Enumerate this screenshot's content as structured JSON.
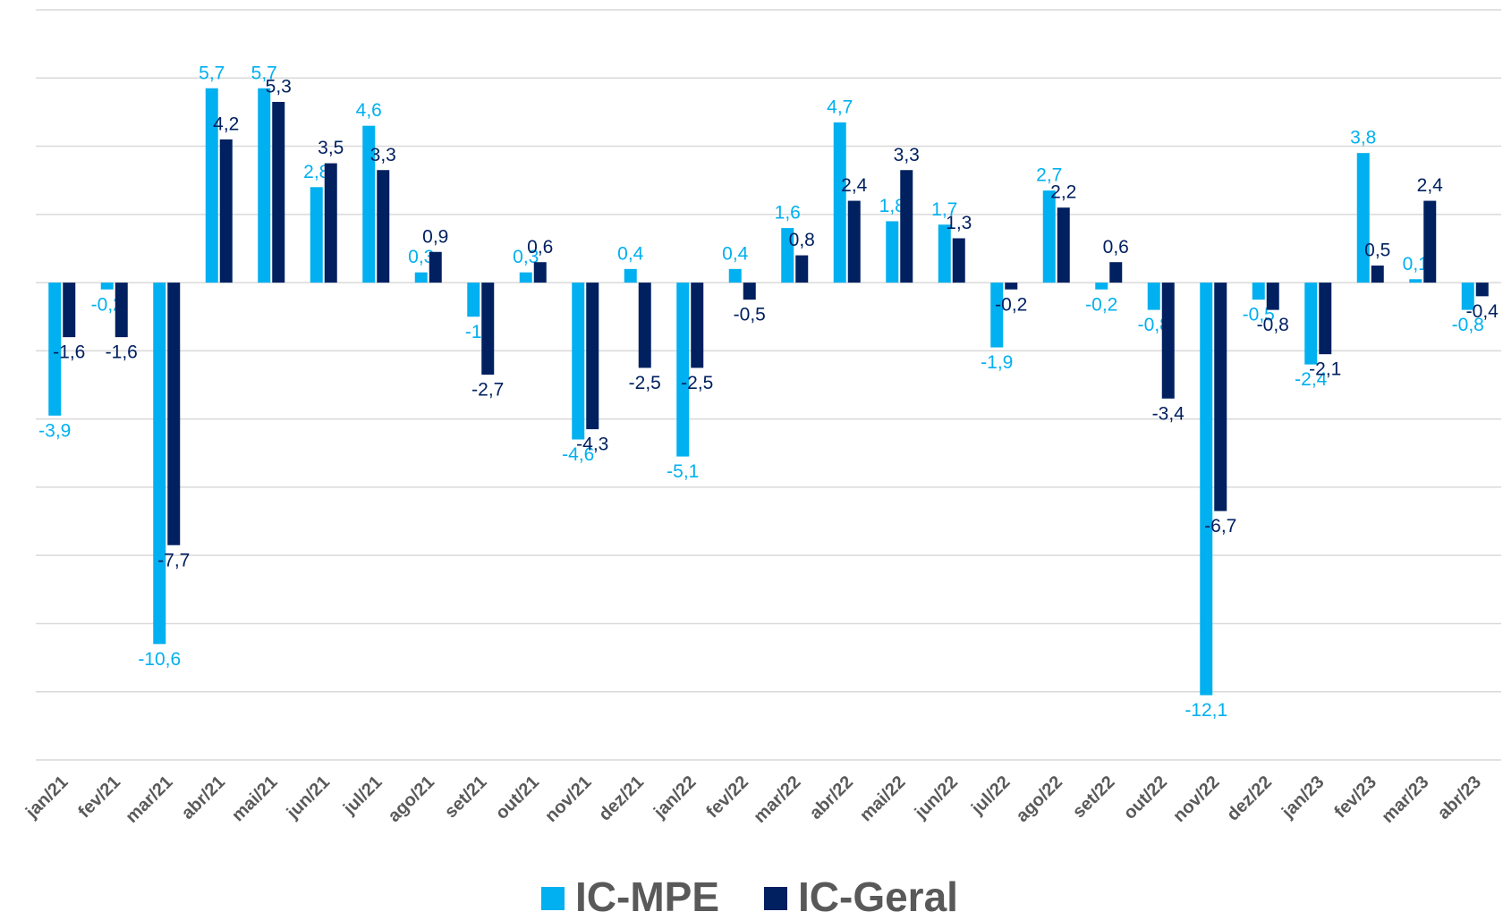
{
  "chart_data": {
    "type": "bar",
    "categories": [
      "jan/21",
      "fev/21",
      "mar/21",
      "abr/21",
      "mai/21",
      "jun/21",
      "jul/21",
      "ago/21",
      "set/21",
      "out/21",
      "nov/21",
      "dez/21",
      "jan/22",
      "fev/22",
      "mar/22",
      "abr/22",
      "mai/22",
      "jun/22",
      "jul/22",
      "ago/22",
      "set/22",
      "out/22",
      "nov/22",
      "dez/22",
      "jan/23",
      "fev/23",
      "mar/23",
      "abr/23"
    ],
    "series": [
      {
        "name": "IC-MPE",
        "color": "#00b0f0",
        "values": [
          -3.9,
          -0.2,
          -10.6,
          5.7,
          5.7,
          2.8,
          4.6,
          0.3,
          -1,
          0.3,
          -4.6,
          0.4,
          -5.1,
          0.4,
          1.6,
          4.7,
          1.8,
          1.7,
          -1.9,
          2.7,
          -0.2,
          -0.8,
          -12.1,
          -0.5,
          -2.4,
          3.8,
          0.1,
          -0.8
        ],
        "value_labels": [
          "-3,9",
          "-0,2",
          "-10,6",
          "5,7",
          "5,7",
          "2,8",
          "4,6",
          "0,3",
          "-1",
          "0,3",
          "-4,6",
          "0,4",
          "-5,1",
          "0,4",
          "1,6",
          "4,7",
          "1,8",
          "1,7",
          "-1,9",
          "2,7",
          "-0,2",
          "-0,8",
          "-12,1",
          "-0,5",
          "-2,4",
          "3,8",
          "0,1",
          "-0,8"
        ]
      },
      {
        "name": "IC-Geral",
        "color": "#002060",
        "values": [
          -1.6,
          -1.6,
          -7.7,
          4.2,
          5.3,
          3.5,
          3.3,
          0.9,
          -2.7,
          0.6,
          -4.3,
          -2.5,
          -2.5,
          -0.5,
          0.8,
          2.4,
          3.3,
          1.3,
          -0.2,
          2.2,
          0.6,
          -3.4,
          -6.7,
          -0.8,
          -2.1,
          0.5,
          2.4,
          -0.4
        ],
        "value_labels": [
          "-1,6",
          "-1,6",
          "-7,7",
          "4,2",
          "5,3",
          "3,5",
          "3,3",
          "0,9",
          "-2,7",
          "0,6",
          "-4,3",
          "-2,5",
          "-2,5",
          "-0,5",
          "0,8",
          "2,4",
          "3,3",
          "1,3",
          "-0,2",
          "2,2",
          "0,6",
          "-3,4",
          "-6,7",
          "-0,8",
          "-2,1",
          "0,5",
          "2,4",
          "-0,4"
        ]
      }
    ],
    "ylim": [
      -14,
      8
    ],
    "yticks": [
      -14,
      -12,
      -10,
      -8,
      -6,
      -4,
      -2,
      0,
      2,
      4,
      6,
      8
    ],
    "grid": true,
    "legend": "bottom"
  }
}
